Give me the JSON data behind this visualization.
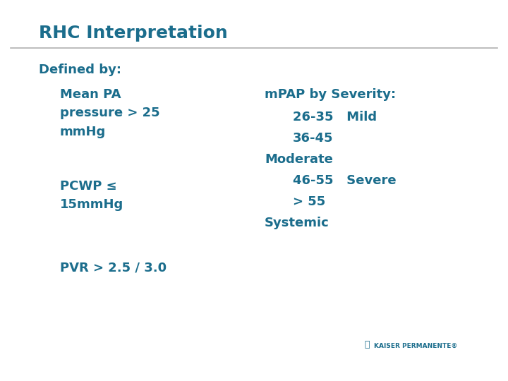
{
  "title": "RHC Interpretation",
  "title_color": "#1b6d8c",
  "title_fontsize": 18,
  "bg_color": "#ffffff",
  "text_color": "#1b6d8c",
  "line_color": "#b0b0b0",
  "left_col": {
    "defined_by": "Defined by:",
    "item1_line1": "Mean PA",
    "item1_line2": "pressure > 25",
    "item1_line3": "mmHg",
    "item2_line1": "PCWP ≤",
    "item2_line2": "15mmHg",
    "item3": "PVR > 2.5 / 3.0"
  },
  "right_col": {
    "header": "mPAP by Severity:",
    "line1": "26-35   Mild",
    "line2": "36-45",
    "line3": "Moderate",
    "line4": "46-55   Severe",
    "line5": "> 55",
    "line6": "Systemic"
  },
  "fontsize_body": 13,
  "fontsize_title": 18,
  "kaiser_text": "KAISER PERMANENTE®"
}
